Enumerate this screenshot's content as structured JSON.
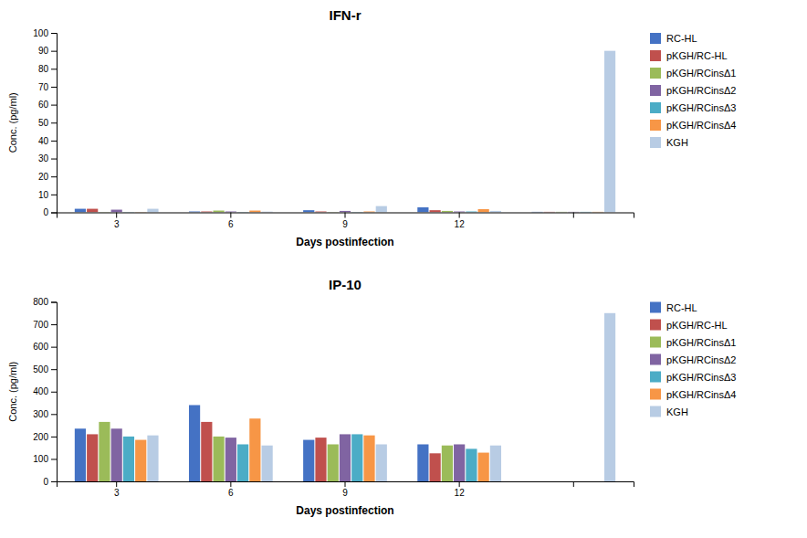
{
  "chart_data": [
    {
      "type": "bar",
      "title": "IFN-r",
      "x_label": "Days postinfection",
      "y_label": "Conc. (pg/ml)",
      "categories": [
        "3",
        "6",
        "9",
        "12",
        null
      ],
      "series": [
        {
          "name": "RC-HL",
          "color": "#4472C4",
          "values": [
            2.0,
            0.5,
            1.2,
            2.8,
            0.3
          ]
        },
        {
          "name": "pKGH/RC-HL",
          "color": "#C0504D",
          "values": [
            2.0,
            0.5,
            0.5,
            1.2,
            0.3
          ]
        },
        {
          "name": "pKGH/RCinsΔ1",
          "color": "#9BBB59",
          "values": [
            0.2,
            1.0,
            0.2,
            0.8,
            0.3
          ]
        },
        {
          "name": "pKGH/RCinsΔ2",
          "color": "#8064A2",
          "values": [
            1.5,
            0.5,
            0.8,
            0.5,
            0.3
          ]
        },
        {
          "name": "pKGH/RCinsΔ3",
          "color": "#4BACC6",
          "values": [
            0.2,
            0.2,
            0.2,
            0.5,
            0.3
          ]
        },
        {
          "name": "pKGH/RCinsΔ4",
          "color": "#F79646",
          "values": [
            0.2,
            1.0,
            0.5,
            1.8,
            0.3
          ]
        },
        {
          "name": "KGH",
          "color": "#B8CCE4",
          "values": [
            2.0,
            0.4,
            3.5,
            0.8,
            90.0
          ]
        }
      ],
      "ylim": [
        0,
        100
      ],
      "yticks": [
        0,
        10,
        20,
        30,
        40,
        50,
        60,
        70,
        80,
        90,
        100
      ],
      "legend": "right"
    },
    {
      "type": "bar",
      "title": "IP-10",
      "x_label": "Days postinfection",
      "y_label": "Conc. (pg/ml)",
      "categories": [
        "3",
        "6",
        "9",
        "12",
        null
      ],
      "series": [
        {
          "name": "RC-HL",
          "color": "#4472C4",
          "values": [
            235,
            340,
            185,
            165,
            0
          ]
        },
        {
          "name": "pKGH/RC-HL",
          "color": "#C0504D",
          "values": [
            210,
            265,
            195,
            125,
            0
          ]
        },
        {
          "name": "pKGH/RCinsΔ1",
          "color": "#9BBB59",
          "values": [
            265,
            200,
            165,
            160,
            0
          ]
        },
        {
          "name": "pKGH/RCinsΔ2",
          "color": "#8064A2",
          "values": [
            235,
            195,
            210,
            165,
            0
          ]
        },
        {
          "name": "pKGH/RCinsΔ3",
          "color": "#4BACC6",
          "values": [
            200,
            165,
            210,
            145,
            0
          ]
        },
        {
          "name": "pKGH/RCinsΔ4",
          "color": "#F79646",
          "values": [
            185,
            280,
            205,
            128,
            0
          ]
        },
        {
          "name": "KGH",
          "color": "#B8CCE4",
          "values": [
            205,
            160,
            165,
            160,
            750
          ]
        }
      ],
      "ylim": [
        0,
        800
      ],
      "yticks": [
        0,
        100,
        200,
        300,
        400,
        500,
        600,
        700,
        800
      ],
      "legend": "right"
    }
  ]
}
